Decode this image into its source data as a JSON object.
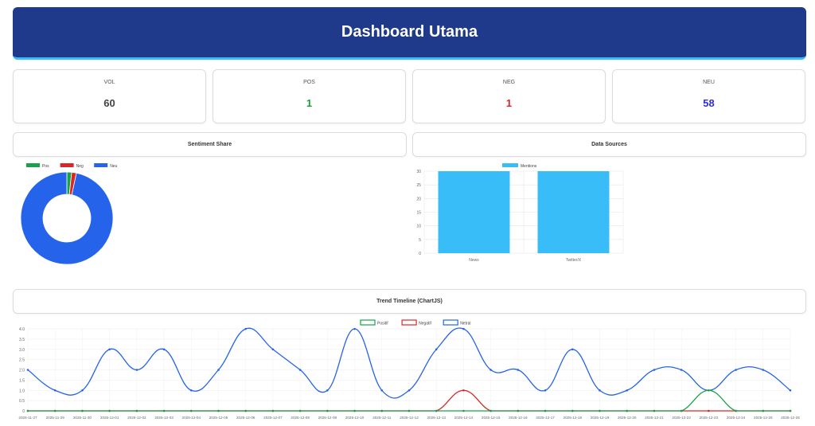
{
  "header": {
    "title": "Dashboard Utama"
  },
  "kpis": [
    {
      "label": "VOL",
      "value": "60",
      "color": "#444444"
    },
    {
      "label": "POS",
      "value": "1",
      "color": "#1a9e3a"
    },
    {
      "label": "NEG",
      "value": "1",
      "color": "#e02424"
    },
    {
      "label": "NEU",
      "value": "58",
      "color": "#2d2de0"
    }
  ],
  "sections": {
    "sentiment_share": "Sentiment Share",
    "data_sources": "Data Sources",
    "trend": "Trend Timeline (ChartJS)"
  },
  "colors": {
    "pos": "#16a34a",
    "neg": "#dc2626",
    "neu": "#2563eb",
    "bar": "#38bdf8"
  },
  "chart_data": [
    {
      "type": "pie",
      "variant": "doughnut",
      "legend": [
        "Pos",
        "Neg",
        "Neu"
      ],
      "values": [
        1,
        1,
        58
      ],
      "legend_position": "top-left"
    },
    {
      "type": "bar",
      "legend": [
        "Mentions"
      ],
      "categories": [
        "News",
        "Twitter/X"
      ],
      "values": [
        30,
        30
      ],
      "ylim": [
        0,
        30
      ],
      "yticks": [
        "0",
        "5",
        "10",
        "15",
        "20",
        "25",
        "30"
      ],
      "grid": true
    },
    {
      "type": "line",
      "x": [
        "2025-11-27",
        "2025-11-29",
        "2025-11-30",
        "2025-12-01",
        "2025-12-02",
        "2025-12-03",
        "2025-12-04",
        "2025-12-05",
        "2025-12-06",
        "2025-12-07",
        "2025-12-08",
        "2025-12-09",
        "2025-12-10",
        "2025-12-11",
        "2025-12-12",
        "2025-12-13",
        "2025-12-14",
        "2025-12-15",
        "2025-12-16",
        "2025-12-17",
        "2025-12-18",
        "2025-12-19",
        "2025-12-20",
        "2025-12-21",
        "2025-12-22",
        "2025-12-23",
        "2025-12-24",
        "2025-12-25",
        "2025-12-26"
      ],
      "series": [
        {
          "name": "Positif",
          "values": [
            0,
            0,
            0,
            0,
            0,
            0,
            0,
            0,
            0,
            0,
            0,
            0,
            0,
            0,
            0,
            0,
            0,
            0,
            0,
            0,
            0,
            0,
            0,
            0,
            0,
            1,
            0,
            0,
            0
          ]
        },
        {
          "name": "Negatif",
          "values": [
            0,
            0,
            0,
            0,
            0,
            0,
            0,
            0,
            0,
            0,
            0,
            0,
            0,
            0,
            0,
            0,
            1,
            0,
            0,
            0,
            0,
            0,
            0,
            0,
            0,
            0,
            0,
            0,
            0
          ]
        },
        {
          "name": "Netral",
          "values": [
            2,
            1,
            1,
            3,
            2,
            3,
            1,
            2,
            4,
            3,
            2,
            1,
            4,
            1,
            1,
            3,
            4,
            2,
            2,
            1,
            3,
            1,
            1,
            2,
            2,
            1,
            2,
            2,
            1
          ]
        }
      ],
      "ylim": [
        0,
        4
      ],
      "yticks": [
        "0",
        "0.5",
        "1.0",
        "1.5",
        "2.0",
        "2.5",
        "3.0",
        "3.5",
        "4.0"
      ],
      "grid": true,
      "legend_position": "top"
    }
  ]
}
